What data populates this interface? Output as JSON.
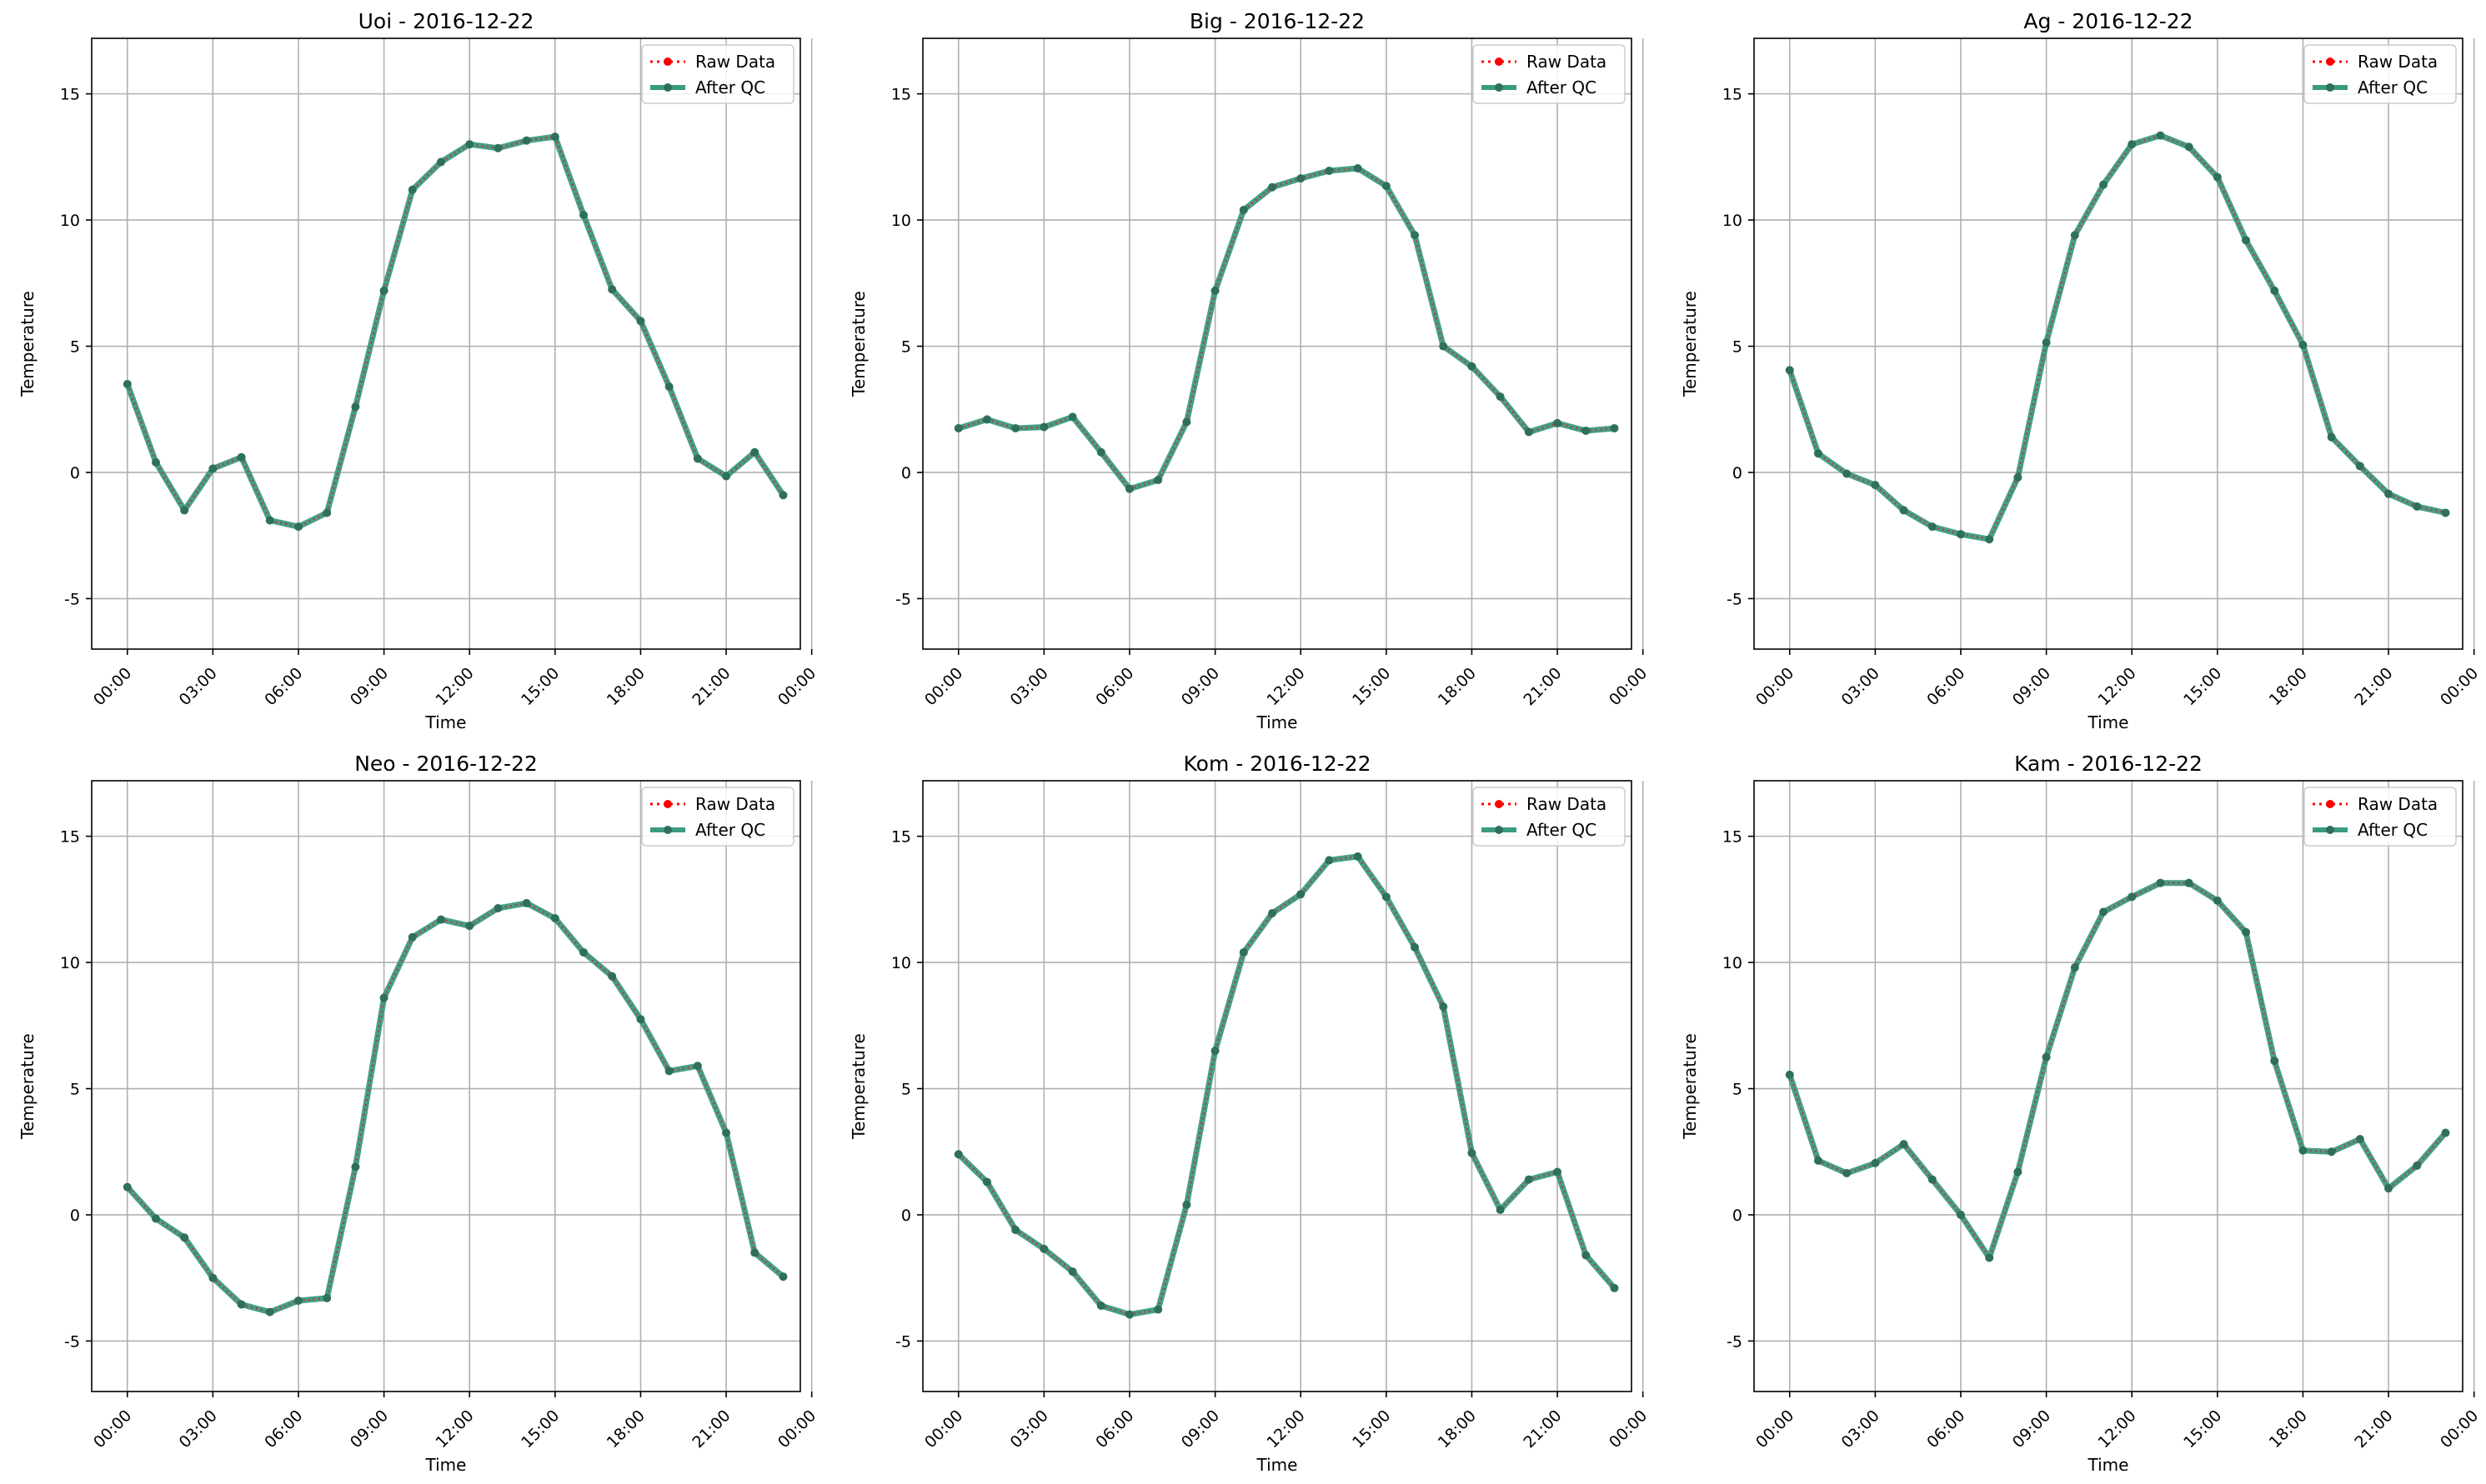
{
  "legend": {
    "raw_label": "Raw Data",
    "qc_label": "After QC",
    "location": "upper right"
  },
  "colors": {
    "raw": "#ff0000",
    "qc": "#3a9b80",
    "grid": "#b0b0b0",
    "axes": "#000000"
  },
  "chart_data": [
    {
      "type": "line",
      "title": "Uoi - 2016-12-22",
      "xlabel": "Time",
      "ylabel": "Temperature",
      "xlim": [
        "-1",
        "23.5"
      ],
      "ylim": [
        -7,
        17.2
      ],
      "x_ticks": [
        "00:00",
        "03:00",
        "06:00",
        "09:00",
        "12:00",
        "15:00",
        "18:00",
        "21:00",
        "00:00"
      ],
      "y_ticks": [
        -5,
        0,
        5,
        10,
        15
      ],
      "grid": true,
      "x_hours": [
        0,
        1,
        2,
        3,
        4,
        5,
        6,
        7,
        8,
        9,
        10,
        11,
        12,
        13,
        14,
        15,
        16,
        17,
        18,
        19,
        20,
        21,
        22,
        23
      ],
      "series": [
        {
          "name": "Raw Data",
          "values": [
            3.5,
            0.4,
            -1.5,
            0.15,
            0.6,
            -1.9,
            -2.15,
            -1.6,
            2.6,
            7.2,
            11.2,
            12.3,
            13.0,
            12.85,
            13.15,
            13.3,
            10.2,
            7.25,
            6.0,
            3.4,
            0.55,
            -0.15,
            0.8,
            -0.9
          ]
        },
        {
          "name": "After QC",
          "values": [
            3.5,
            0.4,
            -1.5,
            0.15,
            0.6,
            -1.9,
            -2.15,
            -1.6,
            2.6,
            7.2,
            11.2,
            12.3,
            13.0,
            12.85,
            13.15,
            13.3,
            10.2,
            7.25,
            6.0,
            3.4,
            0.55,
            -0.15,
            0.8,
            -0.9
          ]
        }
      ]
    },
    {
      "type": "line",
      "title": "Big - 2016-12-22",
      "xlabel": "Time",
      "ylabel": "Temperature",
      "ylim": [
        -7,
        17.2
      ],
      "x_ticks": [
        "00:00",
        "03:00",
        "06:00",
        "09:00",
        "12:00",
        "15:00",
        "18:00",
        "21:00",
        "00:00"
      ],
      "y_ticks": [
        -5,
        0,
        5,
        10,
        15
      ],
      "grid": true,
      "x_hours": [
        0,
        1,
        2,
        3,
        4,
        5,
        6,
        7,
        8,
        9,
        10,
        11,
        12,
        13,
        14,
        15,
        16,
        17,
        18,
        19,
        20,
        21,
        22,
        23
      ],
      "series": [
        {
          "name": "Raw Data",
          "values": [
            1.75,
            2.1,
            1.75,
            1.8,
            2.2,
            0.8,
            -0.65,
            -0.3,
            2.0,
            7.2,
            10.4,
            11.3,
            11.65,
            11.95,
            12.05,
            11.35,
            9.4,
            5.0,
            4.2,
            3.0,
            1.6,
            1.95,
            1.65,
            1.75
          ]
        },
        {
          "name": "After QC",
          "values": [
            1.75,
            2.1,
            1.75,
            1.8,
            2.2,
            0.8,
            -0.65,
            -0.3,
            2.0,
            7.2,
            10.4,
            11.3,
            11.65,
            11.95,
            12.05,
            11.35,
            9.4,
            5.0,
            4.2,
            3.0,
            1.6,
            1.95,
            1.65,
            1.75
          ]
        }
      ]
    },
    {
      "type": "line",
      "title": "Ag - 2016-12-22",
      "xlabel": "Time",
      "ylabel": "Temperature",
      "ylim": [
        -7,
        17.2
      ],
      "x_ticks": [
        "00:00",
        "03:00",
        "06:00",
        "09:00",
        "12:00",
        "15:00",
        "18:00",
        "21:00",
        "00:00"
      ],
      "y_ticks": [
        -5,
        0,
        5,
        10,
        15
      ],
      "grid": true,
      "x_hours": [
        0,
        1,
        2,
        3,
        4,
        5,
        6,
        7,
        8,
        9,
        10,
        11,
        12,
        13,
        14,
        15,
        16,
        17,
        18,
        19,
        20,
        21,
        22,
        23
      ],
      "series": [
        {
          "name": "Raw Data",
          "values": [
            4.05,
            0.75,
            -0.05,
            -0.5,
            -1.5,
            -2.15,
            -2.45,
            -2.65,
            -0.2,
            5.15,
            9.4,
            11.4,
            13.0,
            13.35,
            12.9,
            11.7,
            9.2,
            7.2,
            5.05,
            1.4,
            0.25,
            -0.85,
            -1.35,
            -1.6
          ]
        },
        {
          "name": "After QC",
          "values": [
            4.05,
            0.75,
            -0.05,
            -0.5,
            -1.5,
            -2.15,
            -2.45,
            -2.65,
            -0.2,
            5.15,
            9.4,
            11.4,
            13.0,
            13.35,
            12.9,
            11.7,
            9.2,
            7.2,
            5.05,
            1.4,
            0.25,
            -0.85,
            -1.35,
            -1.6
          ]
        }
      ]
    },
    {
      "type": "line",
      "title": "Neo - 2016-12-22",
      "xlabel": "Time",
      "ylabel": "Temperature",
      "ylim": [
        -7,
        17.2
      ],
      "x_ticks": [
        "00:00",
        "03:00",
        "06:00",
        "09:00",
        "12:00",
        "15:00",
        "18:00",
        "21:00",
        "00:00"
      ],
      "y_ticks": [
        -5,
        0,
        5,
        10,
        15
      ],
      "grid": true,
      "x_hours": [
        0,
        1,
        2,
        3,
        4,
        5,
        6,
        7,
        8,
        9,
        10,
        11,
        12,
        13,
        14,
        15,
        16,
        17,
        18,
        19,
        20,
        21,
        22,
        23
      ],
      "series": [
        {
          "name": "Raw Data",
          "values": [
            1.1,
            -0.15,
            -0.9,
            -2.5,
            -3.55,
            -3.85,
            -3.4,
            -3.3,
            1.9,
            8.6,
            11.0,
            11.7,
            11.45,
            12.15,
            12.35,
            11.75,
            10.4,
            9.45,
            7.75,
            5.7,
            5.9,
            3.25,
            -1.5,
            -2.45
          ]
        },
        {
          "name": "After QC",
          "values": [
            1.1,
            -0.15,
            -0.9,
            -2.5,
            -3.55,
            -3.85,
            -3.4,
            -3.3,
            1.9,
            8.6,
            11.0,
            11.7,
            11.45,
            12.15,
            12.35,
            11.75,
            10.4,
            9.45,
            7.75,
            5.7,
            5.9,
            3.25,
            -1.5,
            -2.45
          ]
        }
      ]
    },
    {
      "type": "line",
      "title": "Kom - 2016-12-22",
      "xlabel": "Time",
      "ylabel": "Temperature",
      "ylim": [
        -7,
        17.2
      ],
      "x_ticks": [
        "00:00",
        "03:00",
        "06:00",
        "09:00",
        "12:00",
        "15:00",
        "18:00",
        "21:00",
        "00:00"
      ],
      "y_ticks": [
        -5,
        0,
        5,
        10,
        15
      ],
      "grid": true,
      "x_hours": [
        0,
        1,
        2,
        3,
        4,
        5,
        6,
        7,
        8,
        9,
        10,
        11,
        12,
        13,
        14,
        15,
        16,
        17,
        18,
        19,
        20,
        21,
        22,
        23
      ],
      "series": [
        {
          "name": "Raw Data",
          "values": [
            2.4,
            1.3,
            -0.6,
            -1.35,
            -2.25,
            -3.6,
            -3.95,
            -3.75,
            0.4,
            6.5,
            10.4,
            11.95,
            12.7,
            14.05,
            14.2,
            12.6,
            10.6,
            8.25,
            2.45,
            0.2,
            1.4,
            1.7,
            -1.6,
            -2.9
          ]
        },
        {
          "name": "After QC",
          "values": [
            2.4,
            1.3,
            -0.6,
            -1.35,
            -2.25,
            -3.6,
            -3.95,
            -3.75,
            0.4,
            6.5,
            10.4,
            11.95,
            12.7,
            14.05,
            14.2,
            12.6,
            10.6,
            8.25,
            2.45,
            0.2,
            1.4,
            1.7,
            -1.6,
            -2.9
          ]
        }
      ]
    },
    {
      "type": "line",
      "title": "Kam - 2016-12-22",
      "xlabel": "Time",
      "ylabel": "Temperature",
      "ylim": [
        -7,
        17.2
      ],
      "x_ticks": [
        "00:00",
        "03:00",
        "06:00",
        "09:00",
        "12:00",
        "15:00",
        "18:00",
        "21:00",
        "00:00"
      ],
      "y_ticks": [
        -5,
        0,
        5,
        10,
        15
      ],
      "grid": true,
      "x_hours": [
        0,
        1,
        2,
        3,
        4,
        5,
        6,
        7,
        8,
        9,
        10,
        11,
        12,
        13,
        14,
        15,
        16,
        17,
        18,
        19,
        20,
        21,
        22,
        23
      ],
      "series": [
        {
          "name": "Raw Data",
          "values": [
            5.55,
            2.15,
            1.65,
            2.05,
            2.8,
            1.4,
            0.0,
            -1.7,
            1.7,
            6.25,
            9.8,
            12.0,
            12.6,
            13.15,
            13.15,
            12.45,
            11.2,
            6.1,
            2.55,
            2.5,
            3.0,
            1.05,
            1.95,
            3.25
          ]
        },
        {
          "name": "After QC",
          "values": [
            5.55,
            2.15,
            1.65,
            2.05,
            2.8,
            1.4,
            0.0,
            -1.7,
            1.7,
            6.25,
            9.8,
            12.0,
            12.6,
            13.15,
            13.15,
            12.45,
            11.2,
            6.1,
            2.55,
            2.5,
            3.0,
            1.05,
            1.95,
            3.25
          ]
        }
      ]
    }
  ]
}
